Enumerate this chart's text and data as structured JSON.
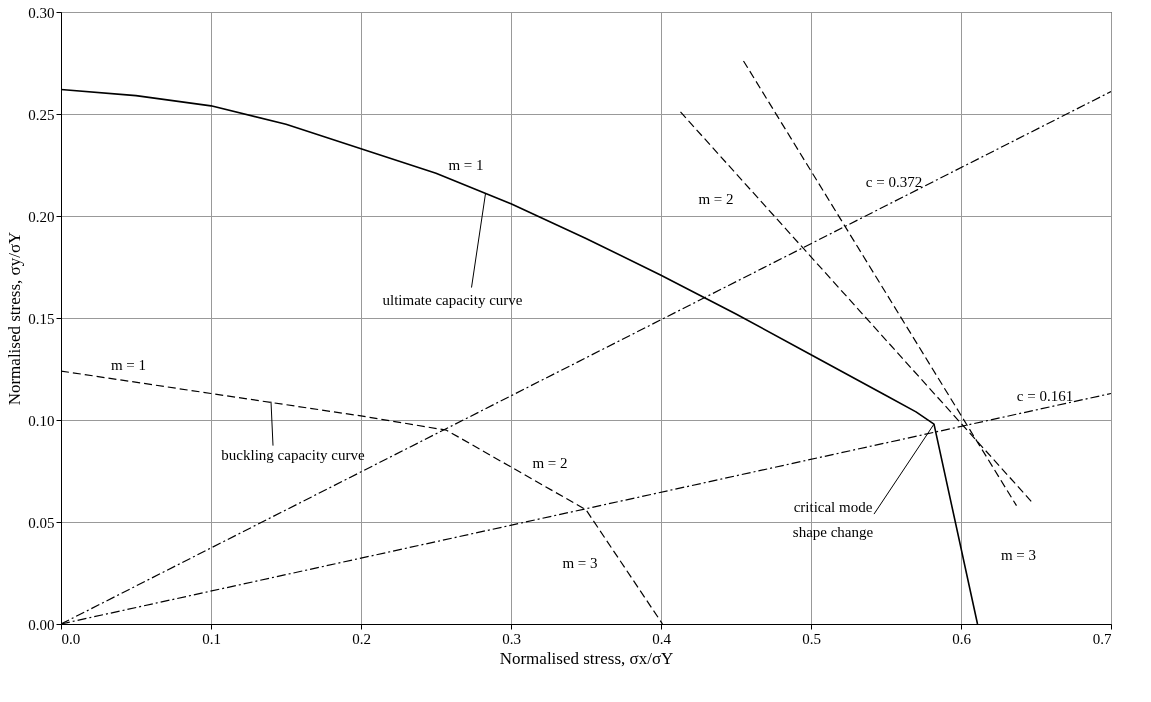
{
  "chart_data": {
    "type": "line",
    "xlabel": "Normalised stress, σx/σY",
    "ylabel": "Normalised stress, σy/σY",
    "xlim": [
      0,
      0.7
    ],
    "ylim": [
      0,
      0.3
    ],
    "xticks": [
      {
        "value": 0,
        "label": "0.0"
      },
      0.1,
      0.2,
      0.3,
      0.4,
      0.5,
      0.6,
      0.7
    ],
    "yticks": [
      {
        "value": 0,
        "label": "0.00"
      },
      0.05,
      {
        "value": 0.1,
        "label": "0.10"
      },
      0.15,
      {
        "value": 0.2,
        "label": "0.20"
      },
      0.25,
      {
        "value": 0.3,
        "label": "0.30"
      }
    ],
    "grid": true,
    "marker": "none",
    "series": [
      {
        "color": "#000000",
        "line_style": "solid",
        "x": [
          0,
          0.05,
          0.1,
          0.15,
          0.2,
          0.25,
          0.3,
          0.35,
          0.4,
          0.45,
          0.5,
          0.55,
          0.57,
          0.582,
          0.611
        ],
        "values": [
          0.262,
          0.259,
          0.254,
          0.245,
          0.233,
          0.221,
          0.206,
          0.189,
          0.171,
          0.152,
          0.132,
          0.112,
          0.104,
          0.098,
          0
        ]
      },
      {
        "color": "#000000",
        "line_style": "dashed",
        "x": [
          0,
          0.1,
          0.2,
          0.257,
          0.35,
          0.401
        ],
        "values": [
          0.124,
          0.113,
          0.102,
          0.095,
          0.056,
          0
        ]
      },
      {
        "color": "#000000",
        "line_style": "dotted",
        "x": [
          0,
          0.7
        ],
        "values": [
          0,
          0.261
        ]
      },
      {
        "color": "#000000",
        "line_style": "dotted",
        "x": [
          0,
          0.7
        ],
        "values": [
          0,
          0.113
        ]
      },
      {
        "color": "#000000",
        "line_style": "dashed",
        "x": [
          0.455,
          0.637
        ],
        "values": [
          0.276,
          0.058
        ]
      },
      {
        "color": "#000000",
        "line_style": "dashed",
        "x": [
          0.413,
          0.647
        ],
        "values": [
          0.251,
          0.06
        ]
      }
    ],
    "annotations": [
      {
        "text": "m = 1",
        "x": 0.27,
        "y": 0.215
      },
      {
        "text": "ultimate capacity curve",
        "x": 0.283,
        "y": 0.211
      },
      {
        "text": "m = 2",
        "x": 0.47,
        "y": 0.204
      },
      {
        "text": "c = 0.372",
        "x": 0.56,
        "y": 0.209
      },
      {
        "text": "c = 0.161",
        "x": 0.66,
        "y": 0.107
      },
      {
        "text": "m = 1",
        "x": 0.045,
        "y": 0.119
      },
      {
        "text": "buckling capacity curve",
        "x": 0.14,
        "y": 0.109
      },
      {
        "text": "m = 2",
        "x": 0.326,
        "y": 0.066
      },
      {
        "text": "m = 3",
        "x": 0.374,
        "y": 0.03
      },
      {
        "text": "critical mode",
        "x": 0.582,
        "y": 0.098
      },
      {
        "text": "shape change",
        "x": 0.582,
        "y": 0.098
      },
      {
        "text": "m = 3",
        "x": 0.601,
        "y": 0.034
      }
    ]
  }
}
